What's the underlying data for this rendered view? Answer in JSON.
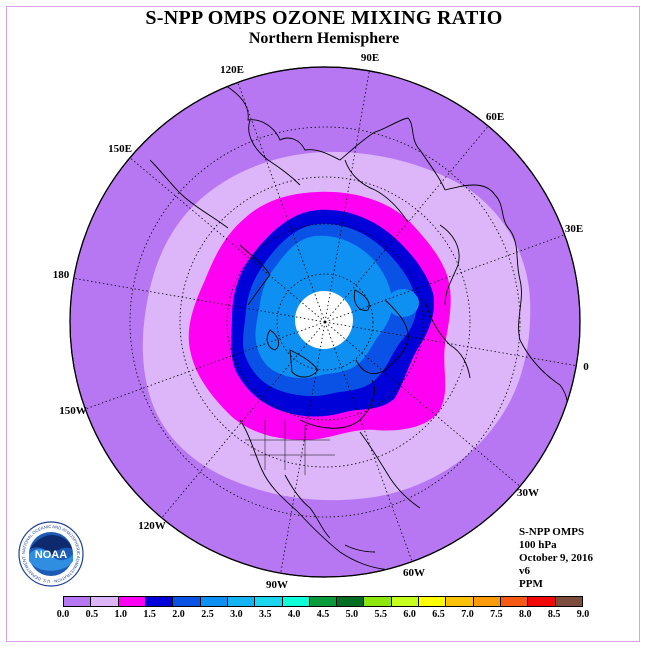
{
  "title": "S-NPP OMPS OZONE MIXING RATIO",
  "subtitle": "Northern Hemisphere",
  "longitude_labels": [
    "90E",
    "60E",
    "30E",
    "0",
    "30W",
    "60W",
    "90W",
    "120W",
    "150W",
    "180",
    "150E",
    "120E"
  ],
  "info": {
    "instrument": "S-NPP OMPS",
    "level": "100 hPa",
    "date": "October 9, 2016",
    "version": "v6",
    "units": "PPM"
  },
  "logo": {
    "text": "NOAA",
    "ring_text": "NATIONAL OCEANIC AND ATMOSPHERIC ADMINISTRATION · U.S. DEPARTMENT OF COMMERCE"
  },
  "colorbar": {
    "colors": [
      "#b877f2",
      "#ddb6f9",
      "#ff00f2",
      "#0000d8",
      "#0a52e6",
      "#0e8ff2",
      "#14b4f2",
      "#1cd6f0",
      "#0fffd9",
      "#0a9b3d",
      "#006e20",
      "#8ee60f",
      "#c6ff1e",
      "#ffff00",
      "#fcc20a",
      "#fb9a0a",
      "#f65a14",
      "#f20a0a",
      "#7c4c3c"
    ],
    "ticks": [
      "0.0",
      "0.5",
      "1.0",
      "1.5",
      "2.0",
      "2.5",
      "3.0",
      "3.5",
      "4.0",
      "4.5",
      "5.0",
      "5.5",
      "6.0",
      "6.5",
      "7.0",
      "7.5",
      "8.0",
      "8.5",
      "9.0"
    ]
  },
  "map_colors": {
    "background_disk": "#b877f2",
    "band_0_5_to_1_0": "#ddb6f9",
    "band_1_0_to_1_5": "#ff00f2",
    "band_1_5_to_2_0": "#0000d8",
    "band_2_0_to_2_5": "#0a52e6",
    "band_2_5_to_3_0": "#0e8ff2",
    "polar_cap": "#ffffff"
  }
}
